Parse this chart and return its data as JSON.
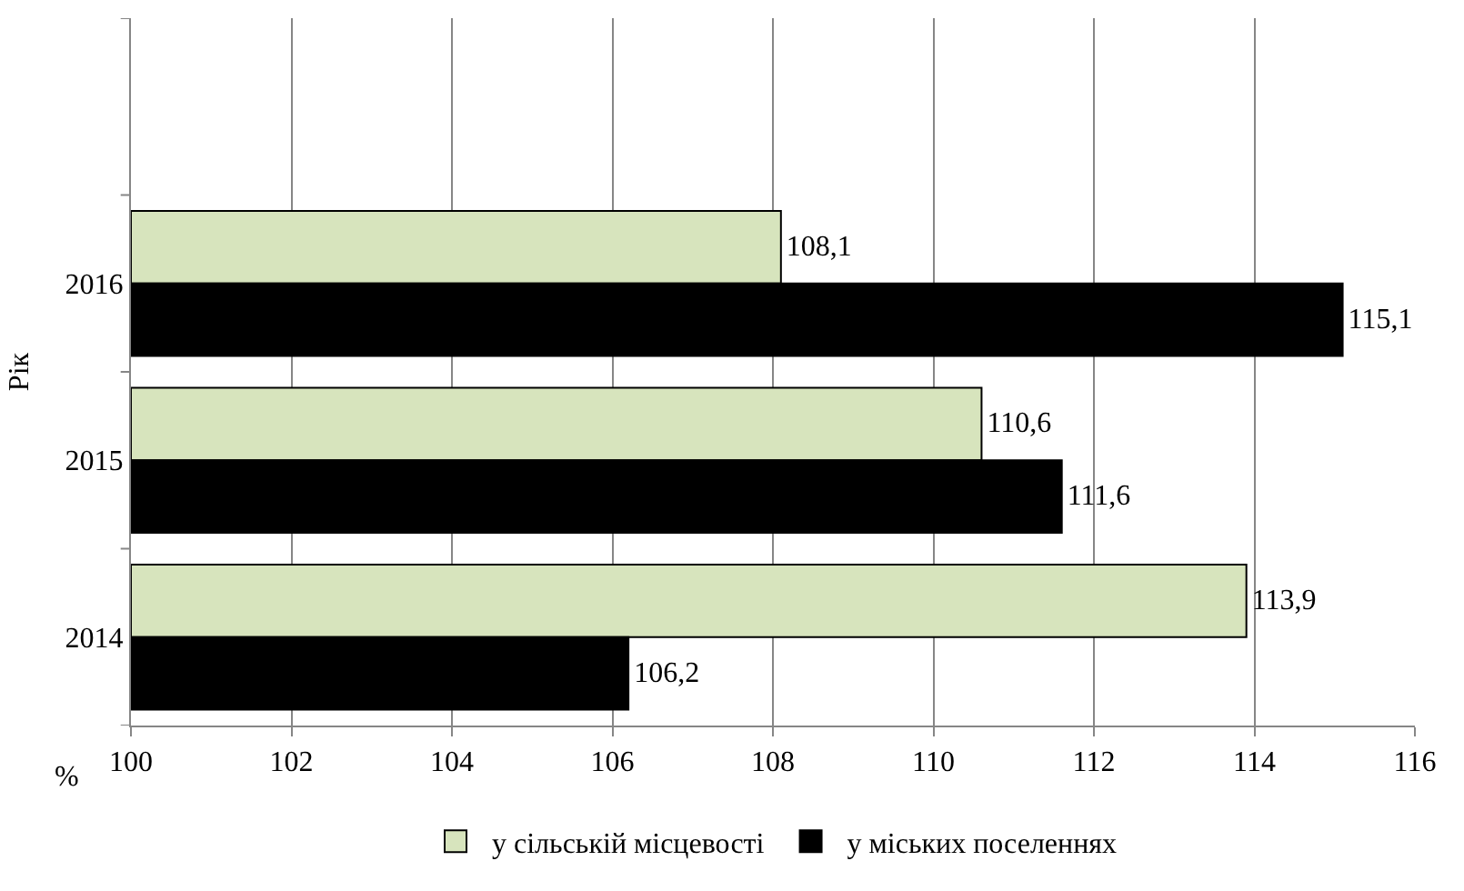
{
  "chart_data": {
    "type": "bar",
    "orientation": "horizontal",
    "ylabel": "Рік",
    "xlabel": "%",
    "categories": [
      null,
      "2016",
      "2015",
      "2014"
    ],
    "series": [
      {
        "name": "у сільській місцевості",
        "color": "#d7e4bd",
        "values": [
          null,
          108.1,
          110.6,
          113.9
        ],
        "value_labels": [
          null,
          "108,1",
          "110,6",
          "113,9"
        ]
      },
      {
        "name": "у міських поселеннях",
        "color": "#000000",
        "values": [
          null,
          115.1,
          111.6,
          106.2
        ],
        "value_labels": [
          null,
          "115,1",
          "111,6",
          "106,2"
        ]
      }
    ],
    "xlim": [
      100,
      116
    ],
    "xticks": [
      100,
      102,
      104,
      106,
      108,
      110,
      112,
      114,
      116
    ],
    "grid": "x",
    "legend": "bottom"
  }
}
